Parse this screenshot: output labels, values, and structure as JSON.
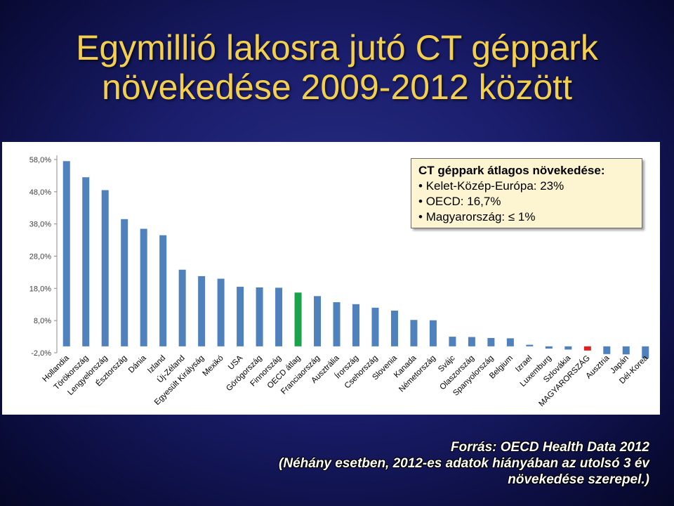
{
  "title": {
    "line1": "Egymillió lakosra jutó CT géppark",
    "line2": "növekedése  2009-2012 között"
  },
  "callout": {
    "heading": "CT géppark átlagos növekedése:",
    "items": [
      "Kelet-Közép-Európa: 23%",
      "OECD: 16,7%",
      "Magyarország: ≤ 1%"
    ],
    "background": "#fdf4d2"
  },
  "source": {
    "line1": "Forrás: OECD Health Data 2012",
    "line2": "(Néhány esetben, 2012-es adatok hiányában az utolsó 3 év",
    "line3": "növekedése szerepel.)"
  },
  "colors": {
    "bar_default": "#4f81bd",
    "bar_oecd": "#1aa34a",
    "bar_hungary": "#e0201c",
    "title": "#f2cf4f"
  },
  "chart_data": {
    "type": "bar",
    "categories": [
      "Hollandia",
      "Törökország",
      "Lengyelország",
      "Észtország",
      "Dánia",
      "Izland",
      "Új-Zéland",
      "Egyesült Királyság",
      "Mexikó",
      "USA",
      "Görögország",
      "Finnország",
      "OECD átlag",
      "Franciaország",
      "Ausztrália",
      "Írország",
      "Csehország",
      "Slovenia",
      "Kanada",
      "Németország",
      "Svájc",
      "Olaszország",
      "Spanyolország",
      "Belgium",
      "Izrael",
      "Luxemburg",
      "Szlovákia",
      "MAGYARORSZÁG",
      "Ausztria",
      "Japán",
      "Dél-Korea"
    ],
    "values": [
      57.5,
      52.5,
      48.5,
      39.5,
      36.5,
      34.5,
      23.8,
      21.8,
      21.0,
      18.5,
      18.3,
      18.2,
      16.7,
      15.6,
      13.7,
      13.1,
      12.0,
      11.1,
      8.2,
      8.1,
      3.0,
      2.9,
      2.6,
      2.5,
      0.5,
      -0.7,
      -1.0,
      -1.3,
      -2.4,
      -2.5,
      -3.7
    ],
    "highlight": {
      "OECD átlag": "oecd",
      "MAGYARORSZÁG": "hungary"
    },
    "yticks": [
      "58,0%",
      "48,0%",
      "38,0%",
      "28,0%",
      "18,0%",
      "8,0%",
      "-2,0%"
    ],
    "ytick_values": [
      58,
      48,
      38,
      28,
      18,
      8,
      -2
    ],
    "ylim": [
      -2,
      58
    ],
    "grid": false,
    "legend": "none"
  }
}
